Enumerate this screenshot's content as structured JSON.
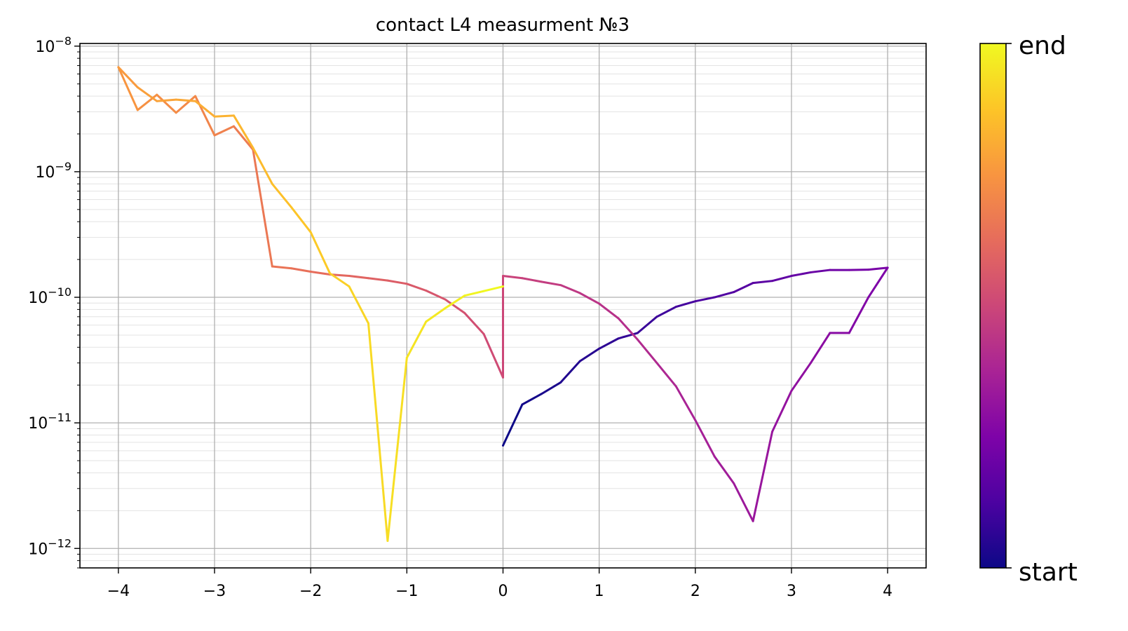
{
  "chart_data": {
    "type": "line",
    "title": "contact L4 measurment №3",
    "xlabel": "",
    "ylabel": "",
    "xlim": [
      -4.4,
      4.4
    ],
    "ylim": [
      7e-13,
      1.05e-08
    ],
    "yscale": "log",
    "grid": true,
    "xticks": [
      -4,
      -3,
      -2,
      -1,
      0,
      1,
      2,
      3,
      4
    ],
    "xtick_labels": [
      "−4",
      "−3",
      "−2",
      "−1",
      "0",
      "1",
      "2",
      "3",
      "4"
    ],
    "yticks": [
      {
        "value": 1e-12,
        "base": "10",
        "exp": "−12"
      },
      {
        "value": 1e-11,
        "base": "10",
        "exp": "−11"
      },
      {
        "value": 1e-10,
        "base": "10",
        "exp": "−10"
      },
      {
        "value": 1e-09,
        "base": "10",
        "exp": "−9"
      },
      {
        "value": 1e-08,
        "base": "10",
        "exp": "−8"
      }
    ],
    "colormap": "plasma",
    "colorbar": {
      "top_label": "end",
      "bottom_label": "start"
    },
    "x": [
      0.0,
      0.2,
      0.4,
      0.6,
      0.8,
      1.0,
      1.2,
      1.4,
      1.6,
      1.8,
      2.0,
      2.2,
      2.4,
      2.6,
      2.8,
      3.0,
      3.2,
      3.4,
      3.6,
      3.8,
      4.0,
      3.8,
      3.6,
      3.4,
      3.2,
      3.0,
      2.8,
      2.6,
      2.4,
      2.2,
      2.0,
      1.8,
      1.6,
      1.4,
      1.2,
      1.0,
      0.8,
      0.6,
      0.4,
      0.2,
      0.0,
      0.0,
      -0.2,
      -0.4,
      -0.6,
      -0.8,
      -1.0,
      -1.2,
      -1.4,
      -1.6,
      -1.8,
      -2.0,
      -2.2,
      -2.4,
      -2.6,
      -2.8,
      -3.0,
      -3.2,
      -3.4,
      -3.6,
      -3.8,
      -4.0,
      -3.8,
      -3.6,
      -3.4,
      -3.2,
      -3.0,
      -2.8,
      -2.6,
      -2.4,
      -2.2,
      -2.0,
      -1.8,
      -1.6,
      -1.4,
      -1.2,
      -1.0,
      -0.8,
      -0.6,
      -0.4,
      -0.2,
      0.0
    ],
    "y": [
      6.6e-12,
      1.4e-11,
      1.7e-11,
      2.1e-11,
      3.1e-11,
      3.9e-11,
      4.7e-11,
      5.2e-11,
      7e-11,
      8.4e-11,
      9.3e-11,
      1e-10,
      1.1e-10,
      1.3e-10,
      1.35e-10,
      1.48e-10,
      1.58e-10,
      1.65e-10,
      1.65e-10,
      1.66e-10,
      1.72e-10,
      1e-10,
      5.2e-11,
      5.2e-11,
      3e-11,
      1.8e-11,
      8.5e-12,
      1.65e-12,
      3.3e-12,
      5.4e-12,
      1.05e-11,
      1.95e-11,
      3e-11,
      4.6e-11,
      6.8e-11,
      8.9e-11,
      1.08e-10,
      1.25e-10,
      1.33e-10,
      1.42e-10,
      1.48e-10,
      2.3e-11,
      5.1e-11,
      7.5e-11,
      9.6e-11,
      1.13e-10,
      1.28e-10,
      1.36e-10,
      1.42e-10,
      1.48e-10,
      1.52e-10,
      1.6e-10,
      1.7e-10,
      1.76e-10,
      1.5e-09,
      2.3e-09,
      1.95e-09,
      4e-09,
      2.95e-09,
      4.1e-09,
      3.1e-09,
      6.8e-09,
      4.7e-09,
      3.65e-09,
      3.75e-09,
      3.65e-09,
      2.75e-09,
      2.8e-09,
      1.55e-09,
      8e-10,
      5.2e-10,
      3.3e-10,
      1.55e-10,
      1.22e-10,
      6.2e-11,
      1.15e-12,
      3.3e-11,
      6.4e-11,
      8.2e-11,
      1.03e-10,
      1.12e-10,
      1.22e-10
    ]
  }
}
